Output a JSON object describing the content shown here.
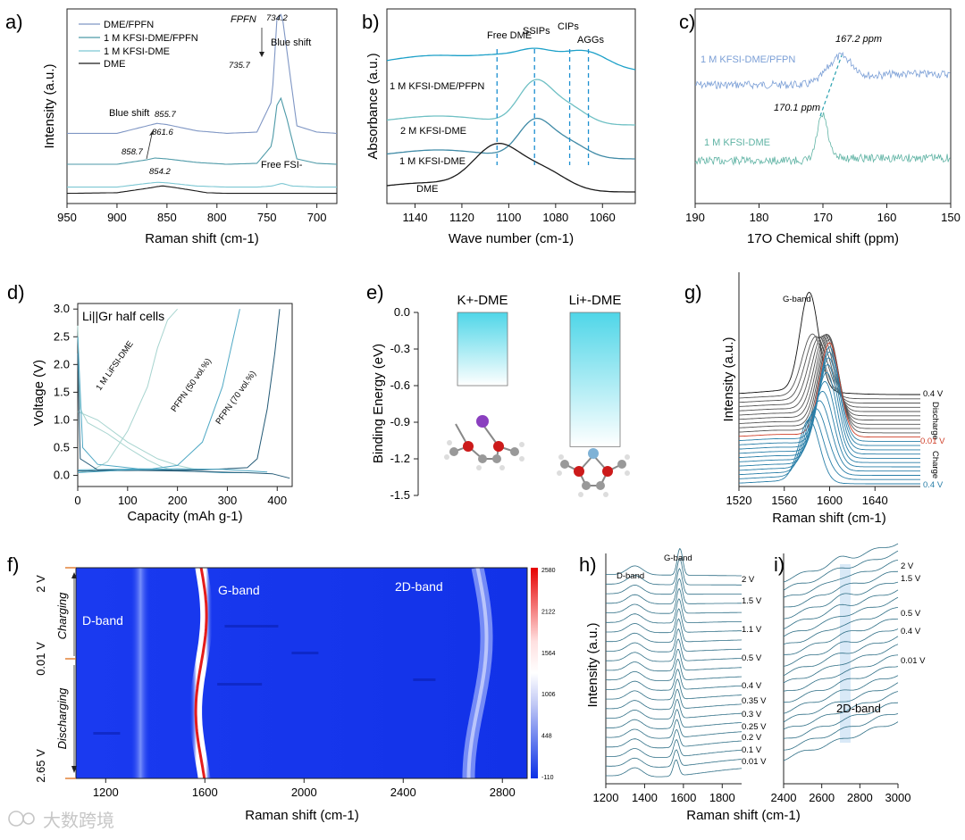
{
  "chart_data": [
    {
      "panel": "a)",
      "type": "line",
      "xlabel": "Raman shift (cm-1)",
      "ylabel": "Intensity (a.u.)",
      "xlim": [
        950,
        680
      ],
      "x_ticks": [
        "950",
        "900",
        "850",
        "800",
        "750",
        "700"
      ],
      "series": [
        {
          "name": "DME/FPFN",
          "color": "#7f96c4",
          "x": [
            950,
            900,
            870,
            860,
            850,
            820,
            790,
            760,
            745,
            740,
            735,
            730,
            720,
            700,
            680
          ],
          "y": [
            0.04,
            0.04,
            0.1,
            0.12,
            0.11,
            0.06,
            0.04,
            0.05,
            0.3,
            0.95,
            1.0,
            0.7,
            0.1,
            0.05,
            0.04
          ]
        },
        {
          "name": "1 M KFSI-DME/FPFN",
          "color": "#4e9aa8",
          "x": [
            950,
            900,
            870,
            862,
            850,
            820,
            790,
            760,
            745,
            740,
            736,
            730,
            720,
            700,
            680
          ],
          "y": [
            0.04,
            0.04,
            0.09,
            0.11,
            0.1,
            0.06,
            0.04,
            0.05,
            0.25,
            0.7,
            0.78,
            0.55,
            0.1,
            0.05,
            0.04
          ]
        },
        {
          "name": "1 M KFSI-DME",
          "color": "#7cc7d3",
          "x": [
            950,
            900,
            870,
            859,
            850,
            820,
            790,
            760,
            745,
            735,
            725,
            700,
            680
          ],
          "y": [
            0.04,
            0.04,
            0.11,
            0.13,
            0.12,
            0.06,
            0.04,
            0.04,
            0.06,
            0.11,
            0.06,
            0.04,
            0.04
          ]
        },
        {
          "name": "DME",
          "color": "#1a1a1a",
          "x": [
            950,
            900,
            870,
            855,
            845,
            825,
            810,
            790,
            760,
            720,
            680
          ],
          "y": [
            0.02,
            0.03,
            0.1,
            0.14,
            0.12,
            0.07,
            0.03,
            0.02,
            0.02,
            0.02,
            0.02
          ]
        }
      ],
      "annotations": [
        "FPFN",
        "734.2",
        "735.7",
        "Blue shift",
        "855.7",
        "861.6",
        "858.7",
        "854.2",
        "Blue shift",
        "Free FSI-"
      ]
    },
    {
      "panel": "b)",
      "type": "line",
      "xlabel": "Wave number (cm-1)",
      "ylabel": "Absorbance (a.u.)",
      "xlim": [
        1152,
        1046
      ],
      "x_ticks": [
        "1140",
        "1120",
        "1100",
        "1080",
        "1060"
      ],
      "series": [
        {
          "name": "1 M KFSI-DME/PFPN",
          "color": "#1ca0c8"
        },
        {
          "name": "2 M KFSI-DME",
          "color": "#6fc0c4"
        },
        {
          "name": "1 M KFSI-DME",
          "color": "#3f8aa6"
        },
        {
          "name": "DME",
          "color": "#1a1a1a"
        }
      ],
      "reference_lines": [
        {
          "label": "Free DME",
          "x": 1105
        },
        {
          "label": "SSIPs",
          "x": 1089
        },
        {
          "label": "CIPs",
          "x": 1074
        },
        {
          "label": "AGGs",
          "x": 1066
        }
      ]
    },
    {
      "panel": "c)",
      "type": "line",
      "xlabel": "17O Chemical shift (ppm)",
      "xlim": [
        190,
        150
      ],
      "x_ticks": [
        "190",
        "180",
        "170",
        "160",
        "150"
      ],
      "series": [
        {
          "name": "1 M KFSI-DME/PFPN",
          "color": "#7b9fd6",
          "peak": 167.2
        },
        {
          "name": "1 M KFSI-DME",
          "color": "#5fb3a4",
          "peak": 170.1
        }
      ],
      "annotations": [
        "167.2 ppm",
        "170.1 ppm"
      ]
    },
    {
      "panel": "d)",
      "type": "line",
      "xlabel": "Capacity (mAh g-1)",
      "ylabel": "Voltage (V)",
      "xlim": [
        0,
        430
      ],
      "ylim": [
        -0.2,
        3.1
      ],
      "x_ticks": [
        "0",
        "100",
        "200",
        "300",
        "400"
      ],
      "y_ticks": [
        "0.0",
        "0.5",
        "1.0",
        "1.5",
        "2.0",
        "2.5",
        "3.0"
      ],
      "legend_text": "Li||Gr half cells",
      "series": [
        {
          "name": "1 M LiFSI-DME",
          "color": "#a7d4cf"
        },
        {
          "name": "PFPN (50 vol.%)",
          "color": "#4fa8c4"
        },
        {
          "name": "PFPN (70 vol.%)",
          "color": "#245a76"
        }
      ]
    },
    {
      "panel": "e)",
      "type": "bar",
      "ylabel": "Binding Energy (eV)",
      "ylim": [
        -1.5,
        0.0
      ],
      "y_ticks": [
        "0.0",
        "-0.3",
        "-0.6",
        "-0.9",
        "-1.2",
        "-1.5"
      ],
      "categories": [
        "K+-DME",
        "Li+-DME"
      ],
      "values": [
        -0.6,
        -1.1
      ],
      "color": "#5ad4e6"
    },
    {
      "panel": "g)",
      "type": "line",
      "xlabel": "Raman shift (cm-1)",
      "ylabel": "Intensity (a.u.)",
      "xlim": [
        1520,
        1680
      ],
      "x_ticks": [
        "1520",
        "1560",
        "1600",
        "1640"
      ],
      "labels": [
        "G-band",
        "0.4 V",
        "Discharge",
        "0.01 V",
        "Charge",
        "0.4 V"
      ]
    },
    {
      "panel": "f)",
      "type": "heatmap",
      "xlabel": "Raman shift (cm-1)",
      "xlim": [
        1080,
        2900
      ],
      "x_ticks": [
        "1200",
        "1600",
        "2000",
        "2400",
        "2800"
      ],
      "y_labels": [
        "2 V",
        "0.01 V",
        "2.65 V"
      ],
      "y_side_labels": [
        "Charging",
        "Discharging"
      ],
      "colorbar_ticks": [
        "2580",
        "2122",
        "1564",
        "1006",
        "448",
        "-110"
      ],
      "band_labels": [
        "D-band",
        "G-band",
        "2D-band"
      ]
    },
    {
      "panel": "h)",
      "type": "line",
      "xlabel": "Raman shift (cm-1)",
      "ylabel": "Intensity (a.u.)",
      "xlim": [
        1200,
        1900
      ],
      "x_ticks": [
        "1200",
        "1400",
        "1600",
        "1800"
      ],
      "labels": [
        "2 V",
        "1.5 V",
        "1.1 V",
        "0.5 V",
        "0.4 V",
        "0.35 V",
        "0.3 V",
        "0.25 V",
        "0.2 V",
        "0.1 V",
        "0.01 V"
      ],
      "band_labels": [
        "D-band",
        "G-band"
      ]
    },
    {
      "panel": "i)",
      "type": "line",
      "xlim": [
        2400,
        3000
      ],
      "x_ticks": [
        "2400",
        "2600",
        "2800",
        "3000"
      ],
      "labels": [
        "2 V",
        "1.5 V",
        "0.5 V",
        "0.4 V",
        "0.01 V"
      ],
      "band_labels": [
        "2D-band"
      ]
    }
  ],
  "shared": {
    "xaxis_bottom": "Raman shift (cm-1)"
  },
  "watermark": "大数跨境"
}
